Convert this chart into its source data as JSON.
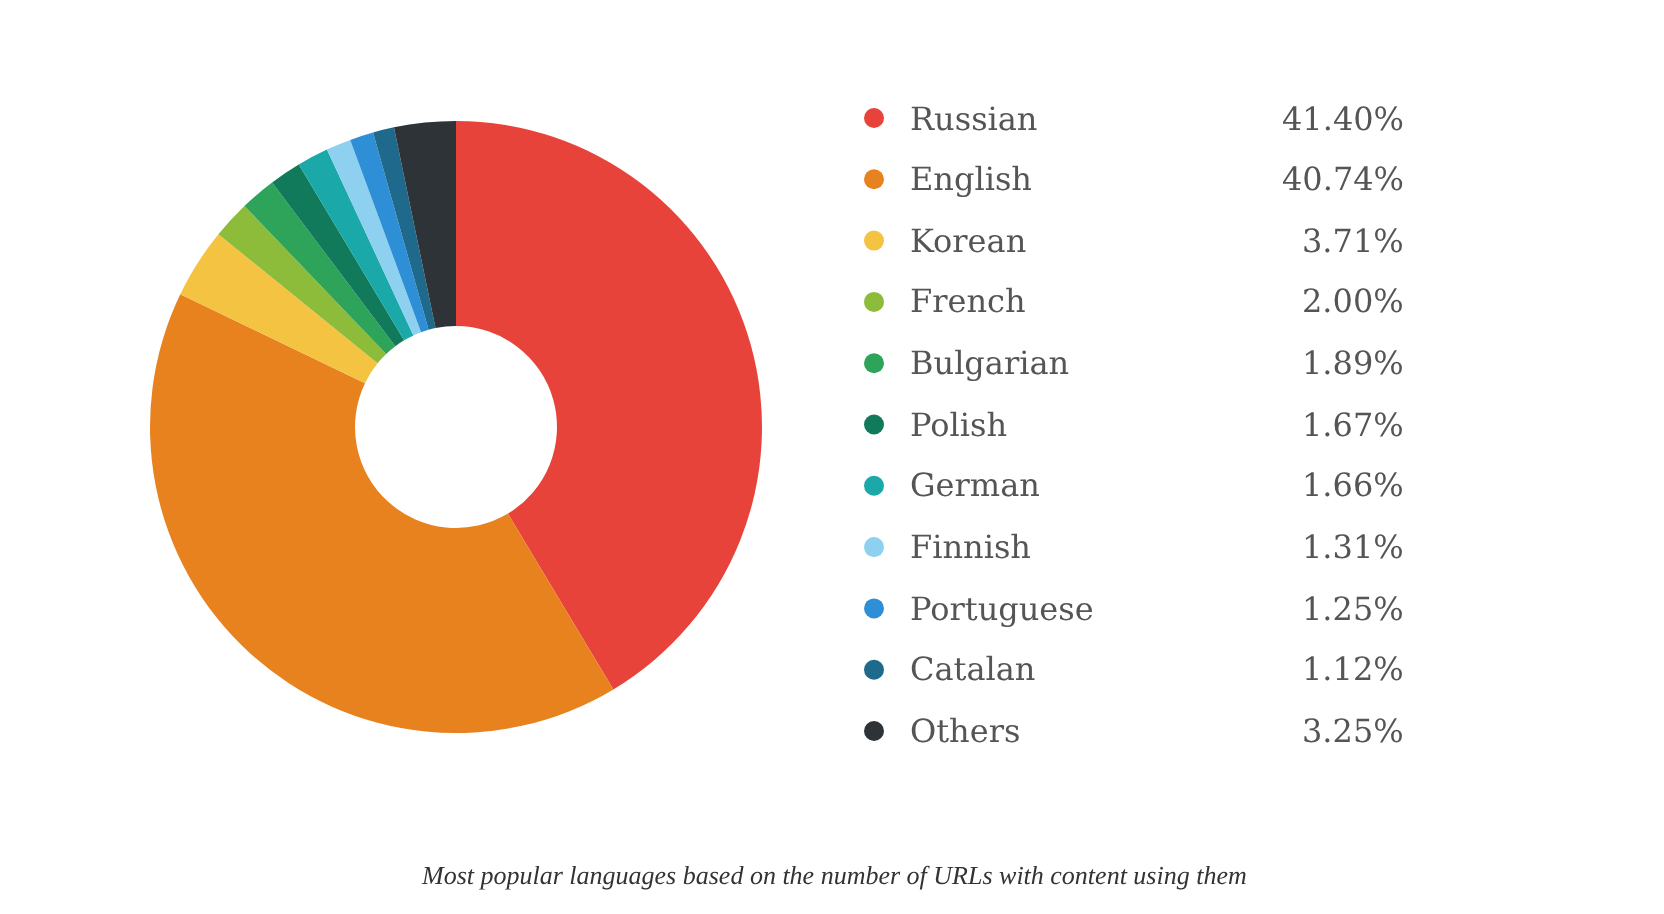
{
  "chart_data": {
    "type": "donut",
    "categories": [
      "Russian",
      "English",
      "Korean",
      "French",
      "Bulgarian",
      "Polish",
      "German",
      "Finnish",
      "Portuguese",
      "Catalan",
      "Others"
    ],
    "values": [
      41.4,
      40.74,
      3.71,
      2.0,
      1.89,
      1.67,
      1.66,
      1.31,
      1.25,
      1.12,
      3.25
    ],
    "value_labels": [
      "41.40%",
      "40.74%",
      "3.71%",
      "2.00%",
      "1.89%",
      "1.67%",
      "1.66%",
      "1.31%",
      "1.25%",
      "1.12%",
      "3.25%"
    ],
    "colors": [
      "#e8433a",
      "#e8821e",
      "#f5c342",
      "#8dbb3a",
      "#2ea35a",
      "#107a5a",
      "#1aa9a8",
      "#8dd0f0",
      "#2f8fd6",
      "#1f6a8c",
      "#2e3338"
    ],
    "legend": "right",
    "annotations": [
      "Most popular languages based on the number of URLs with content using them"
    ]
  }
}
